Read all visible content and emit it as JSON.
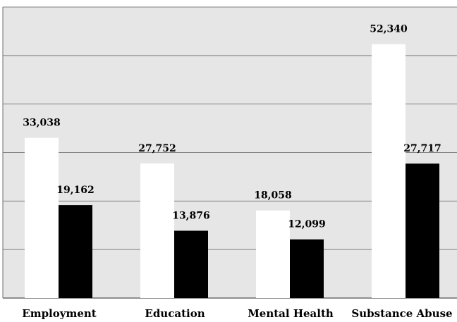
{
  "chart_data": {
    "type": "bar",
    "categories": [
      "Employment",
      "Education",
      "Mental Health",
      "Substance Abuse"
    ],
    "series": [
      {
        "values": [
          33038,
          27752,
          18058,
          52340
        ],
        "color": "#ffffff"
      },
      {
        "values": [
          19162,
          13876,
          12099,
          27717
        ],
        "color": "#000000"
      }
    ],
    "value_labels": [
      [
        "33,038",
        "27,752",
        "18,058",
        "52,340"
      ],
      [
        "19,162",
        "13,876",
        "12,099",
        "27,717"
      ]
    ],
    "ylim": [
      0,
      60000
    ],
    "yticks": [
      0,
      10000,
      20000,
      30000,
      40000,
      50000,
      60000
    ],
    "grid": true,
    "plot_background": "#e6e6e6",
    "gridline_color": "#7f7f7f",
    "title": "",
    "xlabel": "",
    "ylabel": ""
  }
}
